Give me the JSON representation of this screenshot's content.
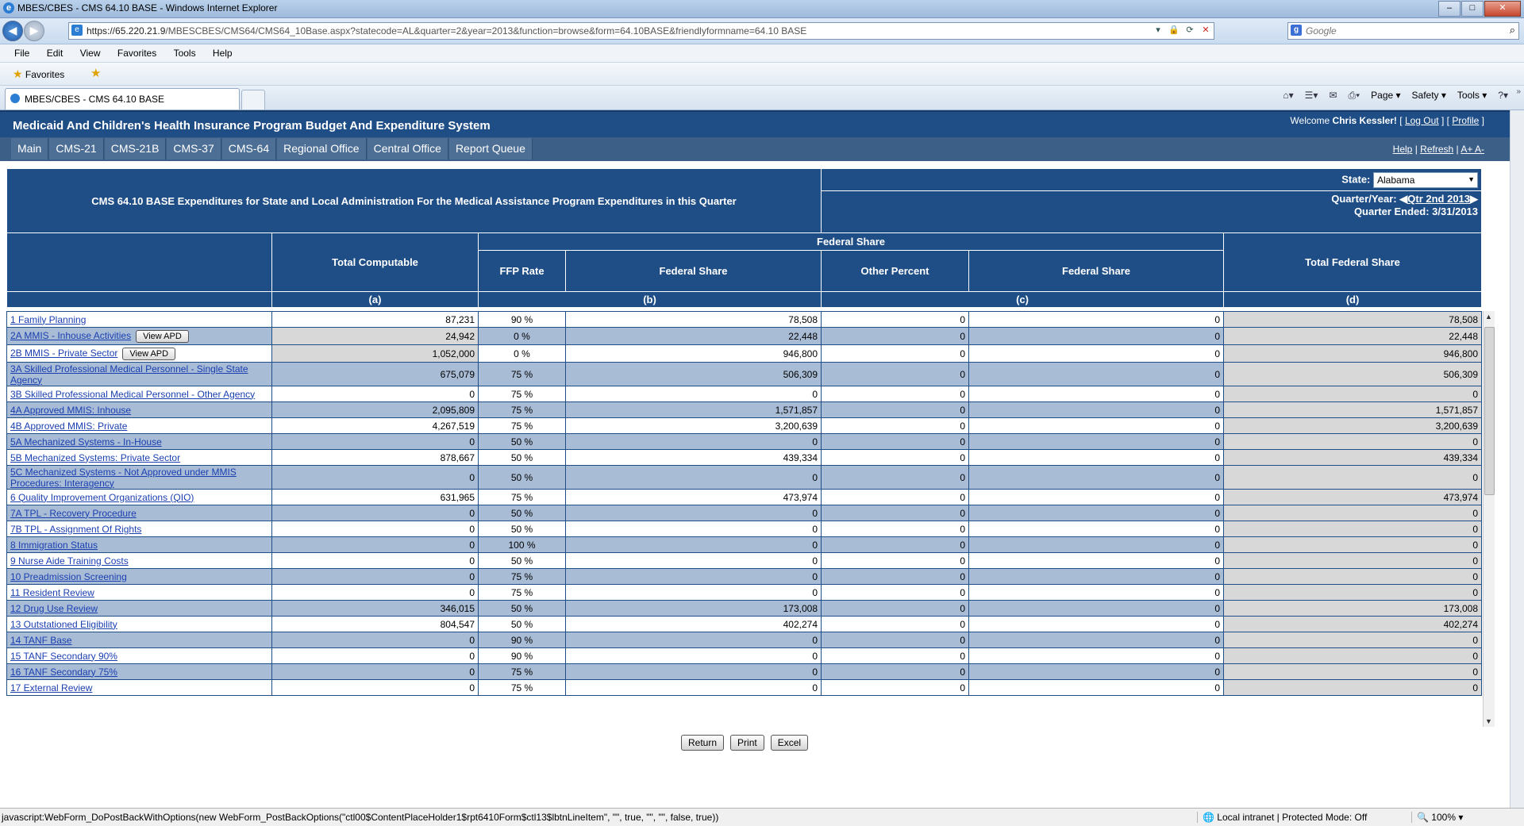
{
  "window": {
    "title": "MBES/CBES - CMS 64.10 BASE - Windows Internet Explorer"
  },
  "address": {
    "url_host": "https://65.220.21.9",
    "url_path": "/MBESCBES/CMS64/CMS64_10Base.aspx?statecode=AL&quarter=2&year=2013&function=browse&form=64.10BASE&friendlyformname=64.10 BASE"
  },
  "search": {
    "placeholder": "Google"
  },
  "menu": [
    "File",
    "Edit",
    "View",
    "Favorites",
    "Tools",
    "Help"
  ],
  "favorites_label": "Favorites",
  "tab": {
    "label": "MBES/CBES - CMS 64.10 BASE"
  },
  "commandbar": [
    "Page ▾",
    "Safety ▾",
    "Tools ▾"
  ],
  "app": {
    "title": "Medicaid And Children's Health Insurance Program Budget And Expenditure System",
    "welcome_prefix": "Welcome",
    "user": "Chris Kessler!",
    "logout": "Log Out",
    "profile": "Profile",
    "nav": [
      "Main",
      "CMS-21",
      "CMS-21B",
      "CMS-37",
      "CMS-64",
      "Regional Office",
      "Central Office",
      "Report Queue"
    ],
    "help": "Help",
    "refresh": "Refresh",
    "fontsize": "A+ A-"
  },
  "form": {
    "title": "CMS 64.10 BASE Expenditures for State and Local Administration For the Medical Assistance Program Expenditures in this Quarter",
    "state_label": "State:",
    "state_value": "Alabama",
    "quarter_label": "Quarter/Year:",
    "quarter_value": "Qtr 2nd 2013",
    "quarter_ended": "Quarter Ended: 3/31/2013"
  },
  "columns": {
    "federal_share_group": "Federal Share",
    "total_computable": "Total Computable",
    "ffp_rate": "FFP Rate",
    "federal_share_b": "Federal Share",
    "other_percent": "Other Percent",
    "federal_share_c": "Federal Share",
    "total_federal_share": "Total Federal Share",
    "a": "(a)",
    "b": "(b)",
    "c": "(c)",
    "d": "(d)"
  },
  "rows": [
    {
      "label": "1 Family Planning",
      "total": "87,231",
      "ffp": "90 %",
      "fed_b": "78,508",
      "other": "0",
      "fed_c": "0",
      "tot_fed": "78,508"
    },
    {
      "label": "2A MMIS - Inhouse Activities",
      "apd": "View APD",
      "total": "24,942",
      "ffp": "0 %",
      "fed_b": "22,448",
      "other": "0",
      "fed_c": "0",
      "tot_fed": "22,448"
    },
    {
      "label": "2B MMIS - Private Sector",
      "apd": "View APD",
      "total": "1,052,000",
      "ffp": "0 %",
      "fed_b": "946,800",
      "other": "0",
      "fed_c": "0",
      "tot_fed": "946,800"
    },
    {
      "label": "3A Skilled Professional Medical Personnel - Single State Agency",
      "total": "675,079",
      "ffp": "75 %",
      "fed_b": "506,309",
      "other": "0",
      "fed_c": "0",
      "tot_fed": "506,309"
    },
    {
      "label": "3B Skilled Professional Medical Personnel - Other Agency",
      "total": "0",
      "ffp": "75 %",
      "fed_b": "0",
      "other": "0",
      "fed_c": "0",
      "tot_fed": "0"
    },
    {
      "label": "4A Approved MMIS: Inhouse",
      "total": "2,095,809",
      "ffp": "75 %",
      "fed_b": "1,571,857",
      "other": "0",
      "fed_c": "0",
      "tot_fed": "1,571,857"
    },
    {
      "label": "4B Approved MMIS: Private",
      "total": "4,267,519",
      "ffp": "75 %",
      "fed_b": "3,200,639",
      "other": "0",
      "fed_c": "0",
      "tot_fed": "3,200,639"
    },
    {
      "label": "5A Mechanized Systems - In-House",
      "total": "0",
      "ffp": "50 %",
      "fed_b": "0",
      "other": "0",
      "fed_c": "0",
      "tot_fed": "0"
    },
    {
      "label": "5B Mechanized Systems: Private Sector",
      "total": "878,667",
      "ffp": "50 %",
      "fed_b": "439,334",
      "other": "0",
      "fed_c": "0",
      "tot_fed": "439,334"
    },
    {
      "label": "5C Mechanized Systems - Not Approved under MMIS Procedures: Interagency",
      "total": "0",
      "ffp": "50 %",
      "fed_b": "0",
      "other": "0",
      "fed_c": "0",
      "tot_fed": "0"
    },
    {
      "label": "6 Quality Improvement Organizations (QIO)",
      "total": "631,965",
      "ffp": "75 %",
      "fed_b": "473,974",
      "other": "0",
      "fed_c": "0",
      "tot_fed": "473,974"
    },
    {
      "label": "7A TPL - Recovery Procedure",
      "total": "0",
      "ffp": "50 %",
      "fed_b": "0",
      "other": "0",
      "fed_c": "0",
      "tot_fed": "0"
    },
    {
      "label": "7B TPL - Assignment Of Rights",
      "total": "0",
      "ffp": "50 %",
      "fed_b": "0",
      "other": "0",
      "fed_c": "0",
      "tot_fed": "0"
    },
    {
      "label": "8 Immigration Status",
      "total": "0",
      "ffp": "100 %",
      "fed_b": "0",
      "other": "0",
      "fed_c": "0",
      "tot_fed": "0"
    },
    {
      "label": "9 Nurse Aide Training Costs",
      "total": "0",
      "ffp": "50 %",
      "fed_b": "0",
      "other": "0",
      "fed_c": "0",
      "tot_fed": "0"
    },
    {
      "label": "10 Preadmission Screening",
      "total": "0",
      "ffp": "75 %",
      "fed_b": "0",
      "other": "0",
      "fed_c": "0",
      "tot_fed": "0"
    },
    {
      "label": "11 Resident Review",
      "total": "0",
      "ffp": "75 %",
      "fed_b": "0",
      "other": "0",
      "fed_c": "0",
      "tot_fed": "0"
    },
    {
      "label": "12 Drug Use Review",
      "total": "346,015",
      "ffp": "50 %",
      "fed_b": "173,008",
      "other": "0",
      "fed_c": "0",
      "tot_fed": "173,008"
    },
    {
      "label": "13 Outstationed Eligibility",
      "total": "804,547",
      "ffp": "50 %",
      "fed_b": "402,274",
      "other": "0",
      "fed_c": "0",
      "tot_fed": "402,274"
    },
    {
      "label": "14 TANF Base",
      "total": "0",
      "ffp": "90 %",
      "fed_b": "0",
      "other": "0",
      "fed_c": "0",
      "tot_fed": "0"
    },
    {
      "label": "15 TANF Secondary 90%",
      "total": "0",
      "ffp": "90 %",
      "fed_b": "0",
      "other": "0",
      "fed_c": "0",
      "tot_fed": "0"
    },
    {
      "label": "16 TANF Secondary 75%",
      "total": "0",
      "ffp": "75 %",
      "fed_b": "0",
      "other": "0",
      "fed_c": "0",
      "tot_fed": "0"
    },
    {
      "label": "17 External Review",
      "total": "0",
      "ffp": "75 %",
      "fed_b": "0",
      "other": "0",
      "fed_c": "0",
      "tot_fed": "0"
    }
  ],
  "buttons": {
    "return": "Return",
    "print": "Print",
    "excel": "Excel"
  },
  "status": {
    "text": "javascript:WebForm_DoPostBackWithOptions(new WebForm_PostBackOptions(\"ctl00$ContentPlaceHolder1$rpt6410Form$ctl13$lbtnLineItem\", \"\", true, \"\", \"\", false, true))",
    "zone": "Local intranet | Protected Mode: Off",
    "zoom": "100%"
  }
}
